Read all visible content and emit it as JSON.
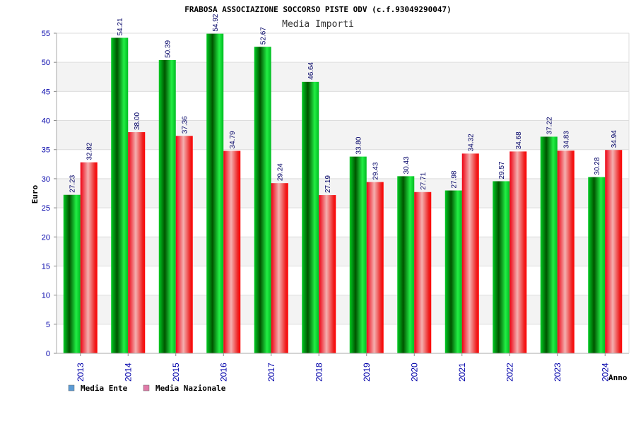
{
  "chart_data": {
    "type": "bar",
    "title": "FRABOSA ASSOCIAZIONE SOCCORSO PISTE ODV (c.f.93049290047)",
    "subtitle": "Media Importi",
    "xlabel": "Anno",
    "ylabel": "Euro",
    "ylim": [
      0,
      55
    ],
    "yticks": [
      0,
      5,
      10,
      15,
      20,
      25,
      30,
      35,
      40,
      45,
      50,
      55
    ],
    "grid": true,
    "legend_position": "bottom-left",
    "categories": [
      "2013",
      "2014",
      "2015",
      "2016",
      "2017",
      "2018",
      "2019",
      "2020",
      "2021",
      "2022",
      "2023",
      "2024"
    ],
    "series": [
      {
        "name": "Media Ente",
        "color": "#00aa00",
        "legend_color": "#5b9bd5",
        "values": [
          27.23,
          54.21,
          50.39,
          54.92,
          52.67,
          46.64,
          33.8,
          30.43,
          27.98,
          29.57,
          37.22,
          30.28
        ],
        "labels": [
          "27.23",
          "54.21",
          "50.39",
          "54.92",
          "52.67",
          "46.64",
          "33.80",
          "30.43",
          "27.98",
          "29.57",
          "37.22",
          "30.28"
        ]
      },
      {
        "name": "Media Nazionale",
        "color": "#ee1111",
        "legend_color": "#e07aa8",
        "values": [
          32.82,
          38.0,
          37.36,
          34.79,
          29.24,
          27.19,
          29.43,
          27.71,
          34.32,
          34.68,
          34.83,
          34.94
        ],
        "labels": [
          "32.82",
          "38.00",
          "37.36",
          "34.79",
          "29.24",
          "27.19",
          "29.43",
          "27.71",
          "34.32",
          "34.68",
          "34.83",
          "34.94"
        ]
      }
    ]
  }
}
